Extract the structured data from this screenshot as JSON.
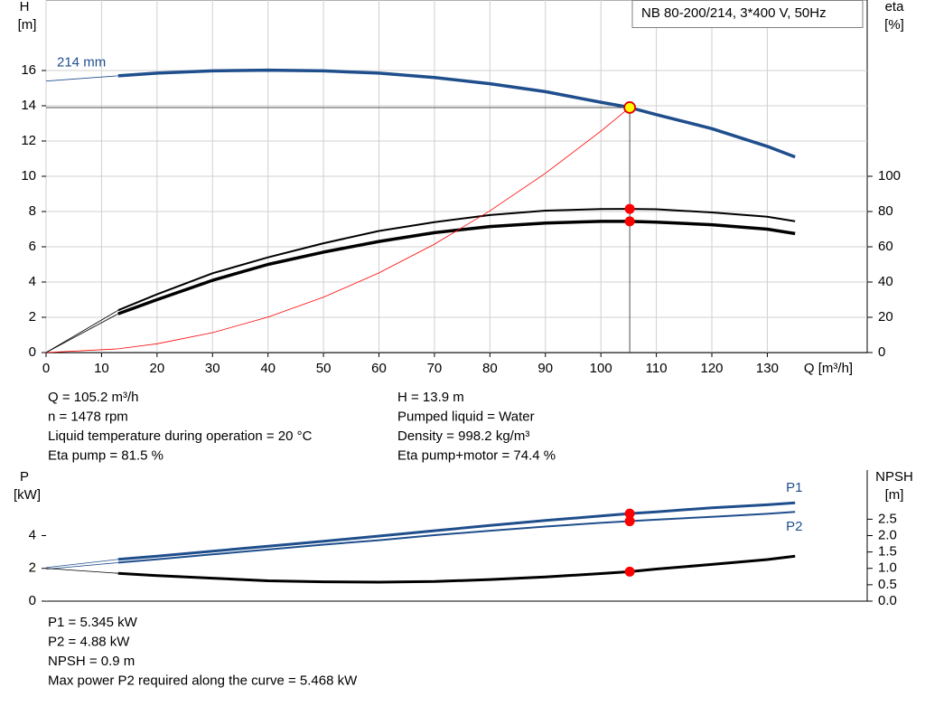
{
  "chart_data": [
    {
      "type": "line",
      "title": "NB 80-200/214, 3*400 V, 50Hz",
      "ylabel": [
        "H",
        "[m]"
      ],
      "y2label": [
        "eta",
        "[%]"
      ],
      "xlabel": "Q [m³/h]",
      "xlim": [
        0,
        148
      ],
      "xticks": [
        0,
        10,
        20,
        30,
        40,
        50,
        60,
        70,
        80,
        90,
        100,
        110,
        120,
        130
      ],
      "ylim": [
        0,
        20
      ],
      "yticks": [
        0,
        2,
        4,
        6,
        8,
        10,
        12,
        14,
        16
      ],
      "y2lim": [
        0,
        200
      ],
      "y2ticks": [
        0,
        20,
        40,
        60,
        80,
        100
      ],
      "grid": true,
      "x": [
        0,
        13,
        20,
        30,
        40,
        50,
        60,
        70,
        80,
        90,
        100,
        105.2,
        110,
        120,
        130,
        135
      ],
      "series": [
        {
          "name": "214 mm",
          "color": "#1f4e8c",
          "line_width": 3.5,
          "values": [
            15.4,
            15.7,
            15.85,
            15.98,
            16.02,
            15.98,
            15.85,
            15.6,
            15.25,
            14.8,
            14.2,
            13.9,
            13.5,
            12.7,
            11.7,
            11.1
          ]
        },
        {
          "color": "#000000",
          "line_width": 2,
          "axis": "y2",
          "values": [
            0,
            24,
            33,
            45,
            54,
            62,
            69,
            74,
            78,
            80.5,
            81.4,
            81.5,
            81.3,
            79.5,
            77,
            74.5
          ]
        },
        {
          "color": "#000000",
          "line_width": 3.5,
          "axis": "y2",
          "values": [
            0,
            22,
            30,
            41,
            50,
            57,
            63,
            68,
            71.5,
            73.5,
            74.4,
            74.4,
            74,
            72.5,
            70,
            67.5
          ]
        },
        {
          "color": "#ff0000",
          "line_width": 0.8,
          "values": [
            0,
            0.21,
            0.5,
            1.13,
            2.01,
            3.14,
            4.52,
            6.15,
            8.04,
            10.17,
            12.56,
            13.9,
            null,
            null,
            null,
            null
          ]
        }
      ],
      "operating_point": {
        "x": 105.2,
        "y": 13.9
      },
      "readout": [
        [
          "Q = 105.2 m³/h",
          "n = 1478 rpm",
          "Liquid temperature during operation = 20 °C",
          "Eta pump = 81.5 %"
        ],
        [
          "H = 13.9 m",
          "Pumped liquid = Water",
          "Density = 998.2 kg/m³",
          "Eta pump+motor = 74.4 %"
        ]
      ]
    },
    {
      "type": "line",
      "ylabel": [
        "P",
        "[kW]"
      ],
      "y2label": [
        "NPSH",
        "[m]"
      ],
      "xlim": [
        0,
        148
      ],
      "ylim": [
        0,
        8
      ],
      "yticks": [
        0,
        2,
        4
      ],
      "y2lim": [
        0,
        4
      ],
      "y2ticks": [
        {
          "value": 0,
          "label": "0.0"
        },
        0.5,
        {
          "value": 1,
          "label": "1.0"
        },
        1.5,
        {
          "value": 2,
          "label": "2.0"
        },
        2.5
      ],
      "grid": false,
      "x": [
        0,
        13,
        20,
        30,
        40,
        50,
        60,
        70,
        80,
        90,
        100,
        105.2,
        110,
        120,
        130,
        135
      ],
      "series": [
        {
          "name": "P1",
          "color": "#1f4e8c",
          "line_width": 3,
          "values": [
            2.05,
            2.55,
            2.75,
            3.05,
            3.35,
            3.65,
            3.97,
            4.3,
            4.62,
            4.92,
            5.2,
            5.345,
            5.45,
            5.7,
            5.88,
            6.0
          ]
        },
        {
          "name": "P2",
          "color": "#1f4e8c",
          "line_width": 2,
          "values": [
            1.95,
            2.35,
            2.55,
            2.85,
            3.15,
            3.45,
            3.72,
            4.03,
            4.3,
            4.55,
            4.78,
            4.88,
            4.97,
            5.15,
            5.33,
            5.45
          ]
        },
        {
          "color": "#000000",
          "line_width": 3,
          "axis": "y2",
          "values": [
            1.0,
            0.85,
            0.78,
            0.7,
            0.62,
            0.59,
            0.58,
            0.6,
            0.66,
            0.74,
            0.84,
            0.9,
            0.98,
            1.12,
            1.27,
            1.37
          ]
        }
      ],
      "operating_point": {
        "x": 105.2
      },
      "readout": [
        [
          "P1 = 5.345 kW",
          "P2 = 4.88 kW",
          "NPSH = 0.9 m",
          "Max power P2 required along the curve = 5.468 kW"
        ]
      ]
    }
  ]
}
